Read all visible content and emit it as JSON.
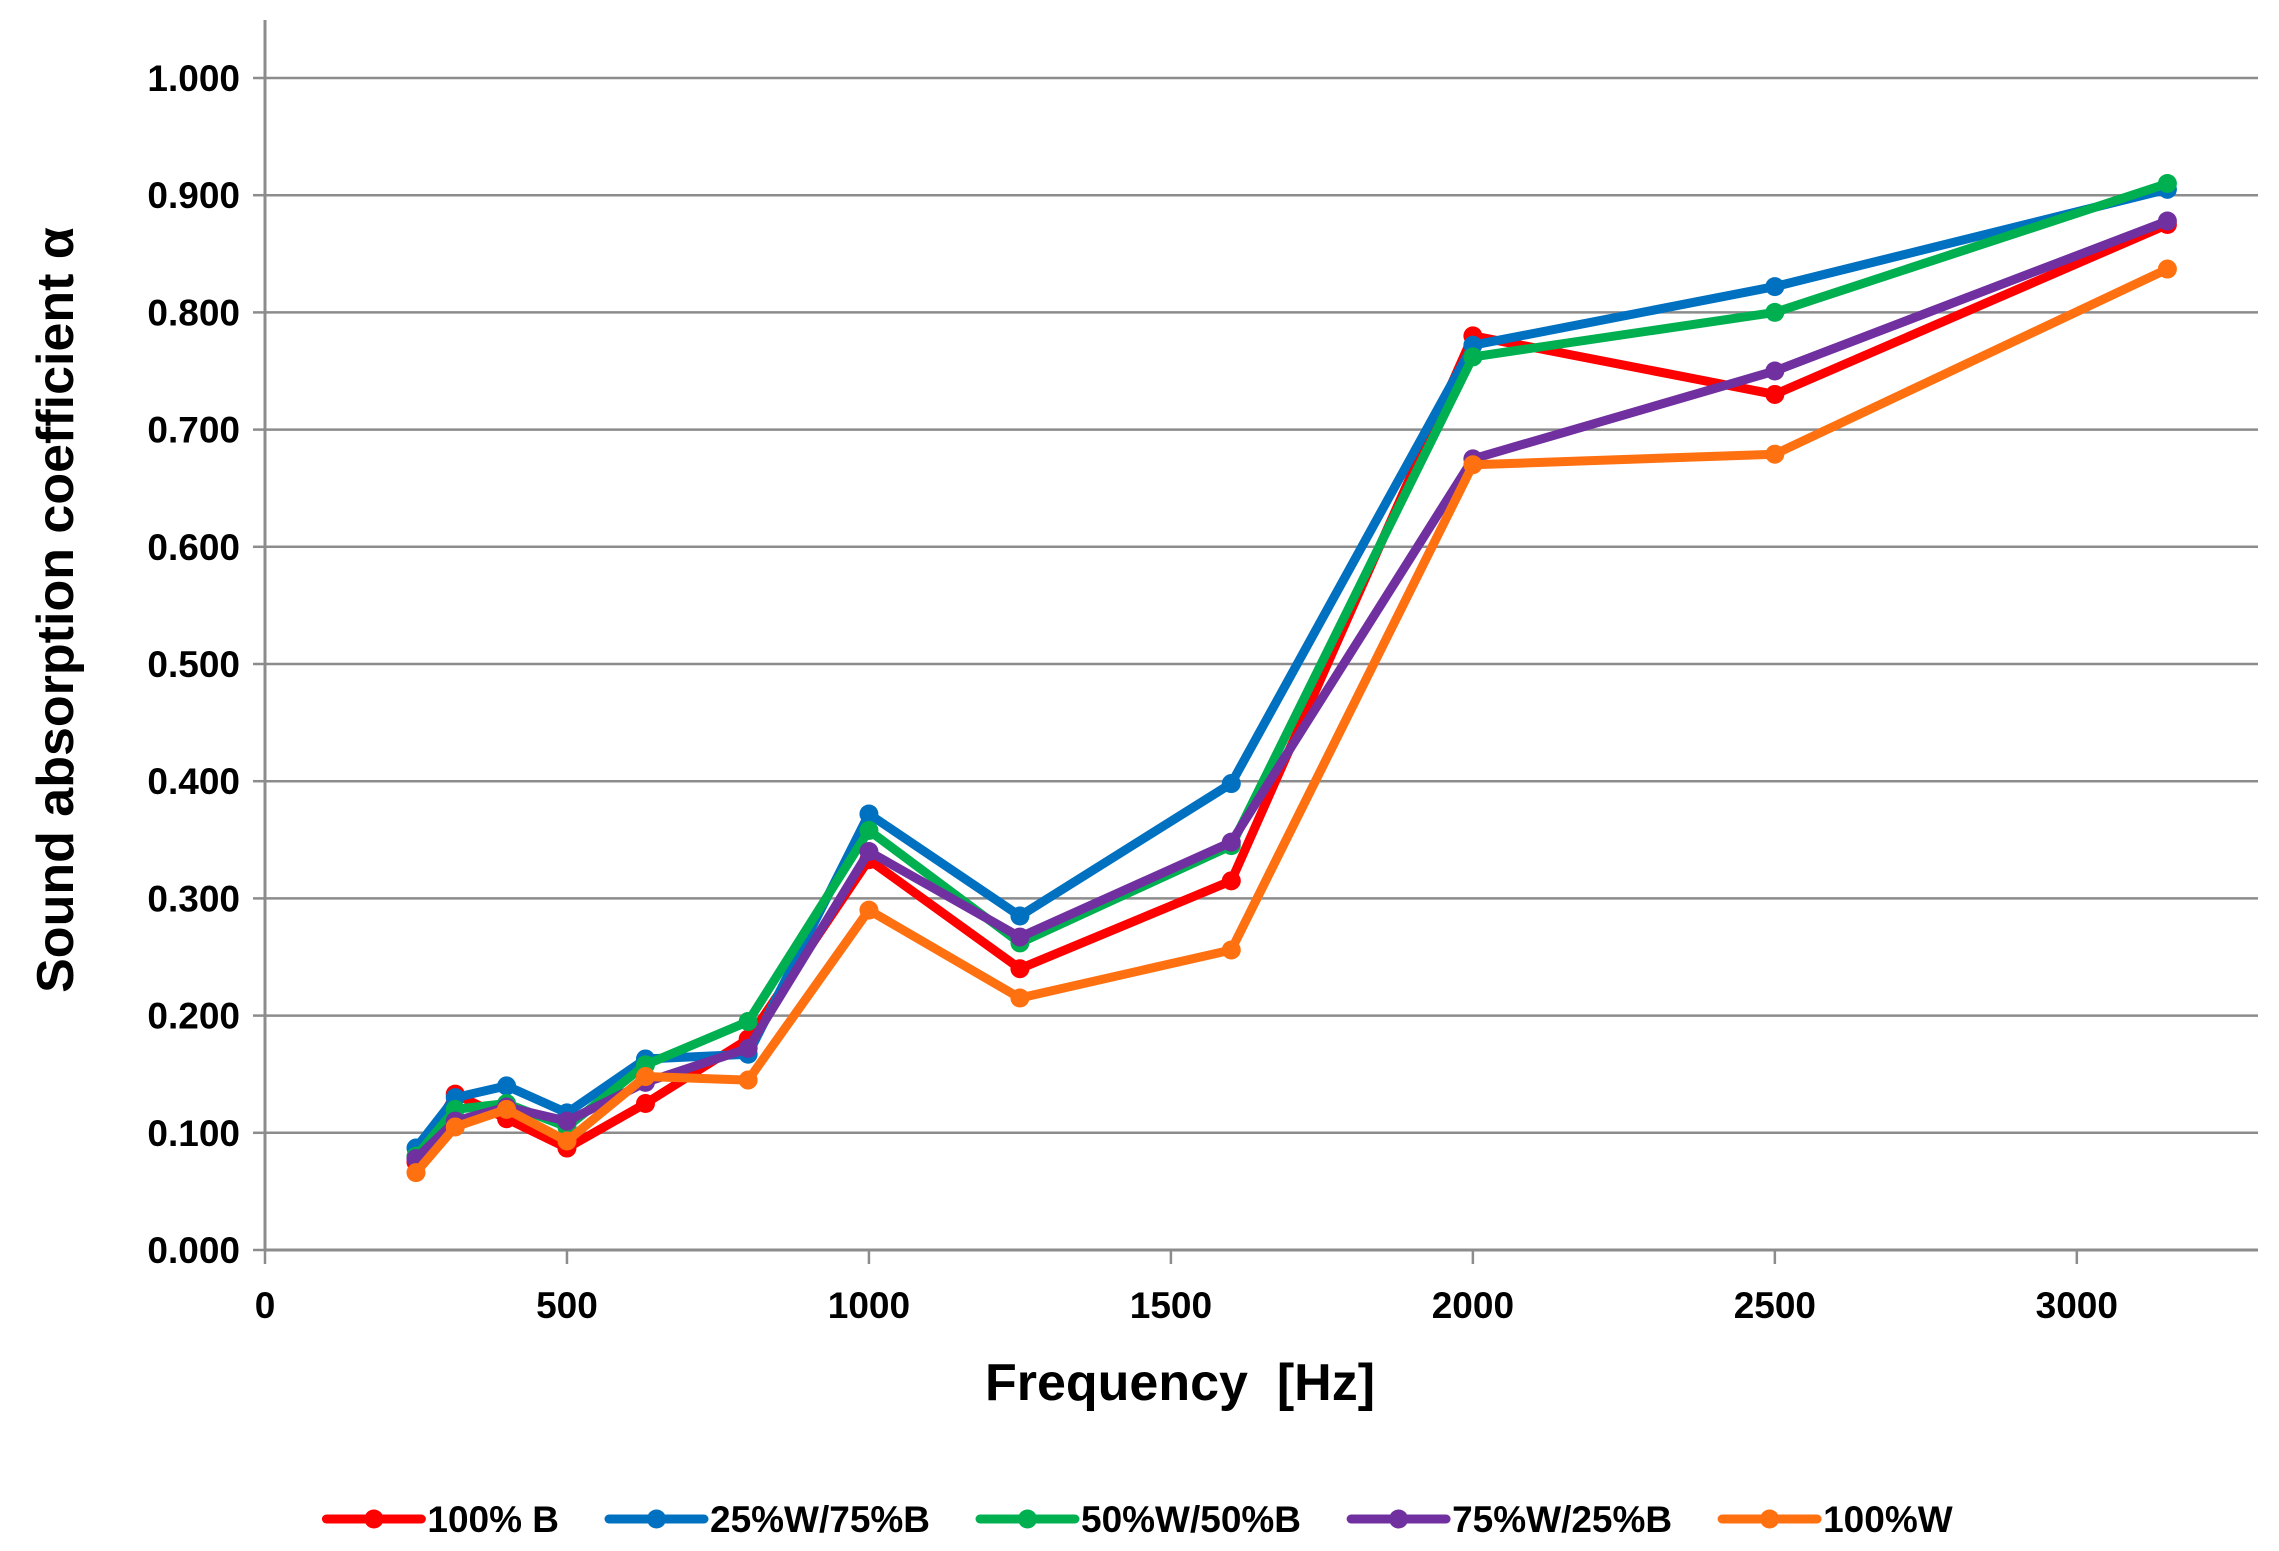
{
  "chart_data": {
    "type": "line",
    "title": "",
    "xlabel": "Frequency  [Hz]",
    "ylabel": "Sound absorption coefficient α",
    "xlim": [
      0,
      3300
    ],
    "ylim": [
      0,
      1.0
    ],
    "x_ticks": [
      0,
      500,
      1000,
      1500,
      2000,
      2500,
      3000
    ],
    "x_tick_labels": [
      "0",
      "500",
      "1000",
      "1500",
      "2000",
      "2500",
      "3000"
    ],
    "y_ticks": [
      0,
      0.1,
      0.2,
      0.3,
      0.4,
      0.5,
      0.6,
      0.7,
      0.8,
      0.9,
      1.0
    ],
    "y_tick_labels": [
      "0.000",
      "0.100",
      "0.200",
      "0.300",
      "0.400",
      "0.500",
      "0.600",
      "0.700",
      "0.800",
      "0.900",
      "1.000"
    ],
    "grid": "horizontal",
    "legend_position": "bottom",
    "x": [
      250,
      315,
      400,
      500,
      630,
      800,
      1000,
      1250,
      1600,
      2000,
      2500,
      3150
    ],
    "series": [
      {
        "name": "100% B",
        "color": "#ff0000",
        "values": [
          0.075,
          0.133,
          0.112,
          0.087,
          0.125,
          0.18,
          0.333,
          0.24,
          0.315,
          0.78,
          0.73,
          0.875
        ]
      },
      {
        "name": "25%W/75%B",
        "color": "#0070c0",
        "values": [
          0.087,
          0.13,
          0.14,
          0.117,
          0.163,
          0.167,
          0.372,
          0.285,
          0.398,
          0.772,
          0.822,
          0.905
        ]
      },
      {
        "name": "50%W/50%B",
        "color": "#00b050",
        "values": [
          0.08,
          0.12,
          0.125,
          0.105,
          0.158,
          0.195,
          0.358,
          0.262,
          0.345,
          0.762,
          0.8,
          0.91
        ]
      },
      {
        "name": "75%W/25%B",
        "color": "#7030a0",
        "values": [
          0.078,
          0.11,
          0.122,
          0.11,
          0.143,
          0.172,
          0.34,
          0.267,
          0.348,
          0.675,
          0.75,
          0.878
        ]
      },
      {
        "name": "100%W",
        "color": "#ff7010",
        "values": [
          0.066,
          0.105,
          0.12,
          0.093,
          0.148,
          0.145,
          0.29,
          0.215,
          0.256,
          0.67,
          0.679,
          0.837
        ]
      }
    ]
  }
}
